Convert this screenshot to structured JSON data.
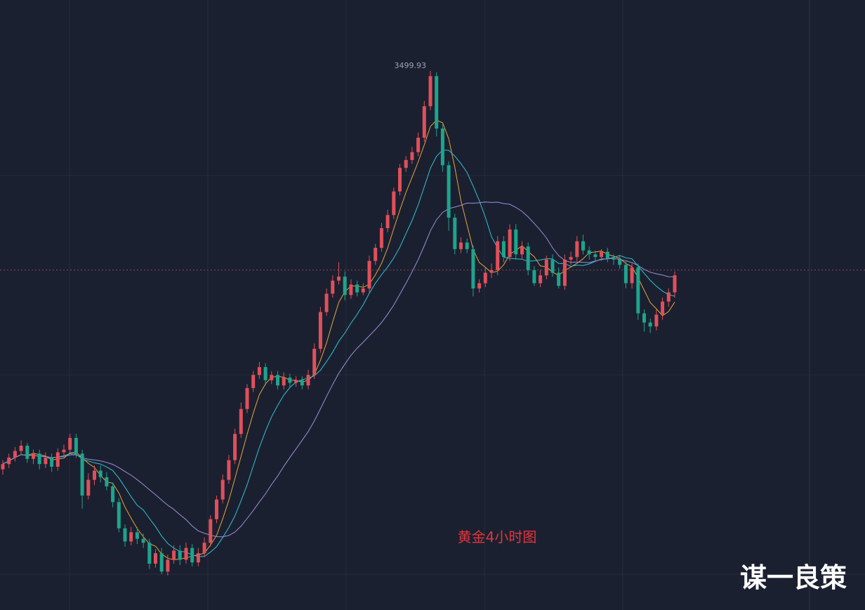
{
  "colors": {
    "background": "#1b2030",
    "grid": "#252d3c",
    "up": "#e0505a",
    "down": "#1ea48c",
    "ma_short": "#e8a33a",
    "ma_mid": "#2ec4d6",
    "ma_long": "#9b8fd8",
    "price_line": "#8a4a52",
    "title": "#e0363d",
    "watermark": "#ffffff"
  },
  "chart_title": "黄金4小时图",
  "watermark": "谋一良策",
  "peak_label": "3499.93",
  "chart_data": {
    "type": "candlestick",
    "title": "黄金4小时图",
    "ylim": [
      3118,
      3510
    ],
    "current_price": 3350,
    "grid": true,
    "candles": [
      [
        3198,
        3202,
        3194,
        3205
      ],
      [
        3202,
        3207,
        3199,
        3210
      ],
      [
        3207,
        3212,
        3204,
        3215
      ],
      [
        3212,
        3216,
        3209,
        3220
      ],
      [
        3216,
        3206,
        3203,
        3218
      ],
      [
        3206,
        3210,
        3202,
        3213
      ],
      [
        3210,
        3202,
        3198,
        3213
      ],
      [
        3202,
        3207,
        3199,
        3211
      ],
      [
        3207,
        3200,
        3196,
        3210
      ],
      [
        3200,
        3211,
        3197,
        3214
      ],
      [
        3211,
        3213,
        3208,
        3217
      ],
      [
        3213,
        3222,
        3210,
        3225
      ],
      [
        3222,
        3210,
        3207,
        3225
      ],
      [
        3210,
        3178,
        3168,
        3213
      ],
      [
        3178,
        3190,
        3175,
        3195
      ],
      [
        3190,
        3197,
        3186,
        3201
      ],
      [
        3197,
        3192,
        3188,
        3201
      ],
      [
        3192,
        3185,
        3182,
        3196
      ],
      [
        3185,
        3173,
        3169,
        3188
      ],
      [
        3173,
        3153,
        3150,
        3176
      ],
      [
        3153,
        3143,
        3139,
        3156
      ],
      [
        3143,
        3150,
        3140,
        3154
      ],
      [
        3150,
        3145,
        3141,
        3154
      ],
      [
        3145,
        3142,
        3138,
        3149
      ],
      [
        3142,
        3126,
        3122,
        3145
      ],
      [
        3126,
        3134,
        3123,
        3137
      ],
      [
        3134,
        3120,
        3118,
        3138
      ],
      [
        3120,
        3129,
        3117,
        3133
      ],
      [
        3129,
        3136,
        3126,
        3140
      ],
      [
        3136,
        3129,
        3125,
        3140
      ],
      [
        3129,
        3138,
        3126,
        3142
      ],
      [
        3138,
        3127,
        3124,
        3141
      ],
      [
        3127,
        3134,
        3124,
        3138
      ],
      [
        3134,
        3142,
        3131,
        3146
      ],
      [
        3142,
        3160,
        3139,
        3163
      ],
      [
        3160,
        3175,
        3157,
        3178
      ],
      [
        3175,
        3190,
        3172,
        3194
      ],
      [
        3190,
        3205,
        3187,
        3209
      ],
      [
        3205,
        3225,
        3202,
        3229
      ],
      [
        3225,
        3244,
        3222,
        3249
      ],
      [
        3244,
        3260,
        3241,
        3263
      ],
      [
        3260,
        3270,
        3257,
        3273
      ],
      [
        3270,
        3276,
        3267,
        3280
      ],
      [
        3276,
        3266,
        3262,
        3279
      ],
      [
        3266,
        3270,
        3263,
        3273
      ],
      [
        3270,
        3262,
        3259,
        3273
      ],
      [
        3262,
        3268,
        3259,
        3272
      ],
      [
        3268,
        3264,
        3260,
        3271
      ],
      [
        3264,
        3266,
        3261,
        3269
      ],
      [
        3266,
        3262,
        3259,
        3269
      ],
      [
        3262,
        3270,
        3259,
        3274
      ],
      [
        3270,
        3290,
        3267,
        3294
      ],
      [
        3290,
        3318,
        3287,
        3322
      ],
      [
        3318,
        3332,
        3315,
        3336
      ],
      [
        3332,
        3342,
        3329,
        3346
      ],
      [
        3342,
        3345,
        3339,
        3356
      ],
      [
        3345,
        3331,
        3327,
        3349
      ],
      [
        3331,
        3339,
        3328,
        3343
      ],
      [
        3339,
        3333,
        3330,
        3342
      ],
      [
        3333,
        3336,
        3331,
        3340
      ],
      [
        3336,
        3357,
        3333,
        3361
      ],
      [
        3357,
        3367,
        3354,
        3370
      ],
      [
        3367,
        3382,
        3364,
        3386
      ],
      [
        3382,
        3392,
        3379,
        3396
      ],
      [
        3392,
        3410,
        3389,
        3413
      ],
      [
        3410,
        3428,
        3407,
        3431
      ],
      [
        3428,
        3434,
        3425,
        3437
      ],
      [
        3434,
        3440,
        3431,
        3444
      ],
      [
        3440,
        3451,
        3437,
        3455
      ],
      [
        3451,
        3475,
        3448,
        3479
      ],
      [
        3475,
        3498,
        3472,
        3502
      ],
      [
        3498,
        3458,
        3452,
        3501
      ],
      [
        3458,
        3430,
        3425,
        3461
      ],
      [
        3430,
        3390,
        3380,
        3433
      ],
      [
        3390,
        3366,
        3362,
        3393
      ],
      [
        3366,
        3371,
        3363,
        3375
      ],
      [
        3371,
        3366,
        3363,
        3374
      ],
      [
        3366,
        3336,
        3330,
        3369
      ],
      [
        3336,
        3340,
        3333,
        3343
      ],
      [
        3340,
        3348,
        3337,
        3352
      ],
      [
        3348,
        3350,
        3344,
        3355
      ],
      [
        3350,
        3372,
        3346,
        3376
      ],
      [
        3372,
        3360,
        3356,
        3376
      ],
      [
        3360,
        3381,
        3357,
        3385
      ],
      [
        3381,
        3362,
        3358,
        3385
      ],
      [
        3362,
        3368,
        3358,
        3372
      ],
      [
        3368,
        3350,
        3346,
        3371
      ],
      [
        3350,
        3340,
        3338,
        3353
      ],
      [
        3340,
        3346,
        3337,
        3350
      ],
      [
        3346,
        3358,
        3343,
        3361
      ],
      [
        3358,
        3348,
        3345,
        3362
      ],
      [
        3348,
        3338,
        3336,
        3352
      ],
      [
        3338,
        3358,
        3335,
        3362
      ],
      [
        3358,
        3360,
        3354,
        3364
      ],
      [
        3360,
        3372,
        3357,
        3376
      ],
      [
        3372,
        3365,
        3362,
        3377
      ],
      [
        3365,
        3362,
        3358,
        3368
      ],
      [
        3362,
        3360,
        3357,
        3365
      ],
      [
        3360,
        3364,
        3357,
        3366
      ],
      [
        3364,
        3359,
        3356,
        3367
      ],
      [
        3359,
        3358,
        3354,
        3362
      ],
      [
        3358,
        3354,
        3351,
        3361
      ],
      [
        3354,
        3340,
        3336,
        3357
      ],
      [
        3340,
        3352,
        3336,
        3355
      ],
      [
        3352,
        3317,
        3312,
        3355
      ],
      [
        3317,
        3310,
        3303,
        3320
      ],
      [
        3310,
        3307,
        3302,
        3313
      ],
      [
        3307,
        3316,
        3304,
        3320
      ],
      [
        3316,
        3326,
        3312,
        3329
      ],
      [
        3326,
        3333,
        3322,
        3336
      ],
      [
        3333,
        3346,
        3329,
        3349
      ]
    ],
    "ma_periods": [
      5,
      10,
      20
    ]
  }
}
